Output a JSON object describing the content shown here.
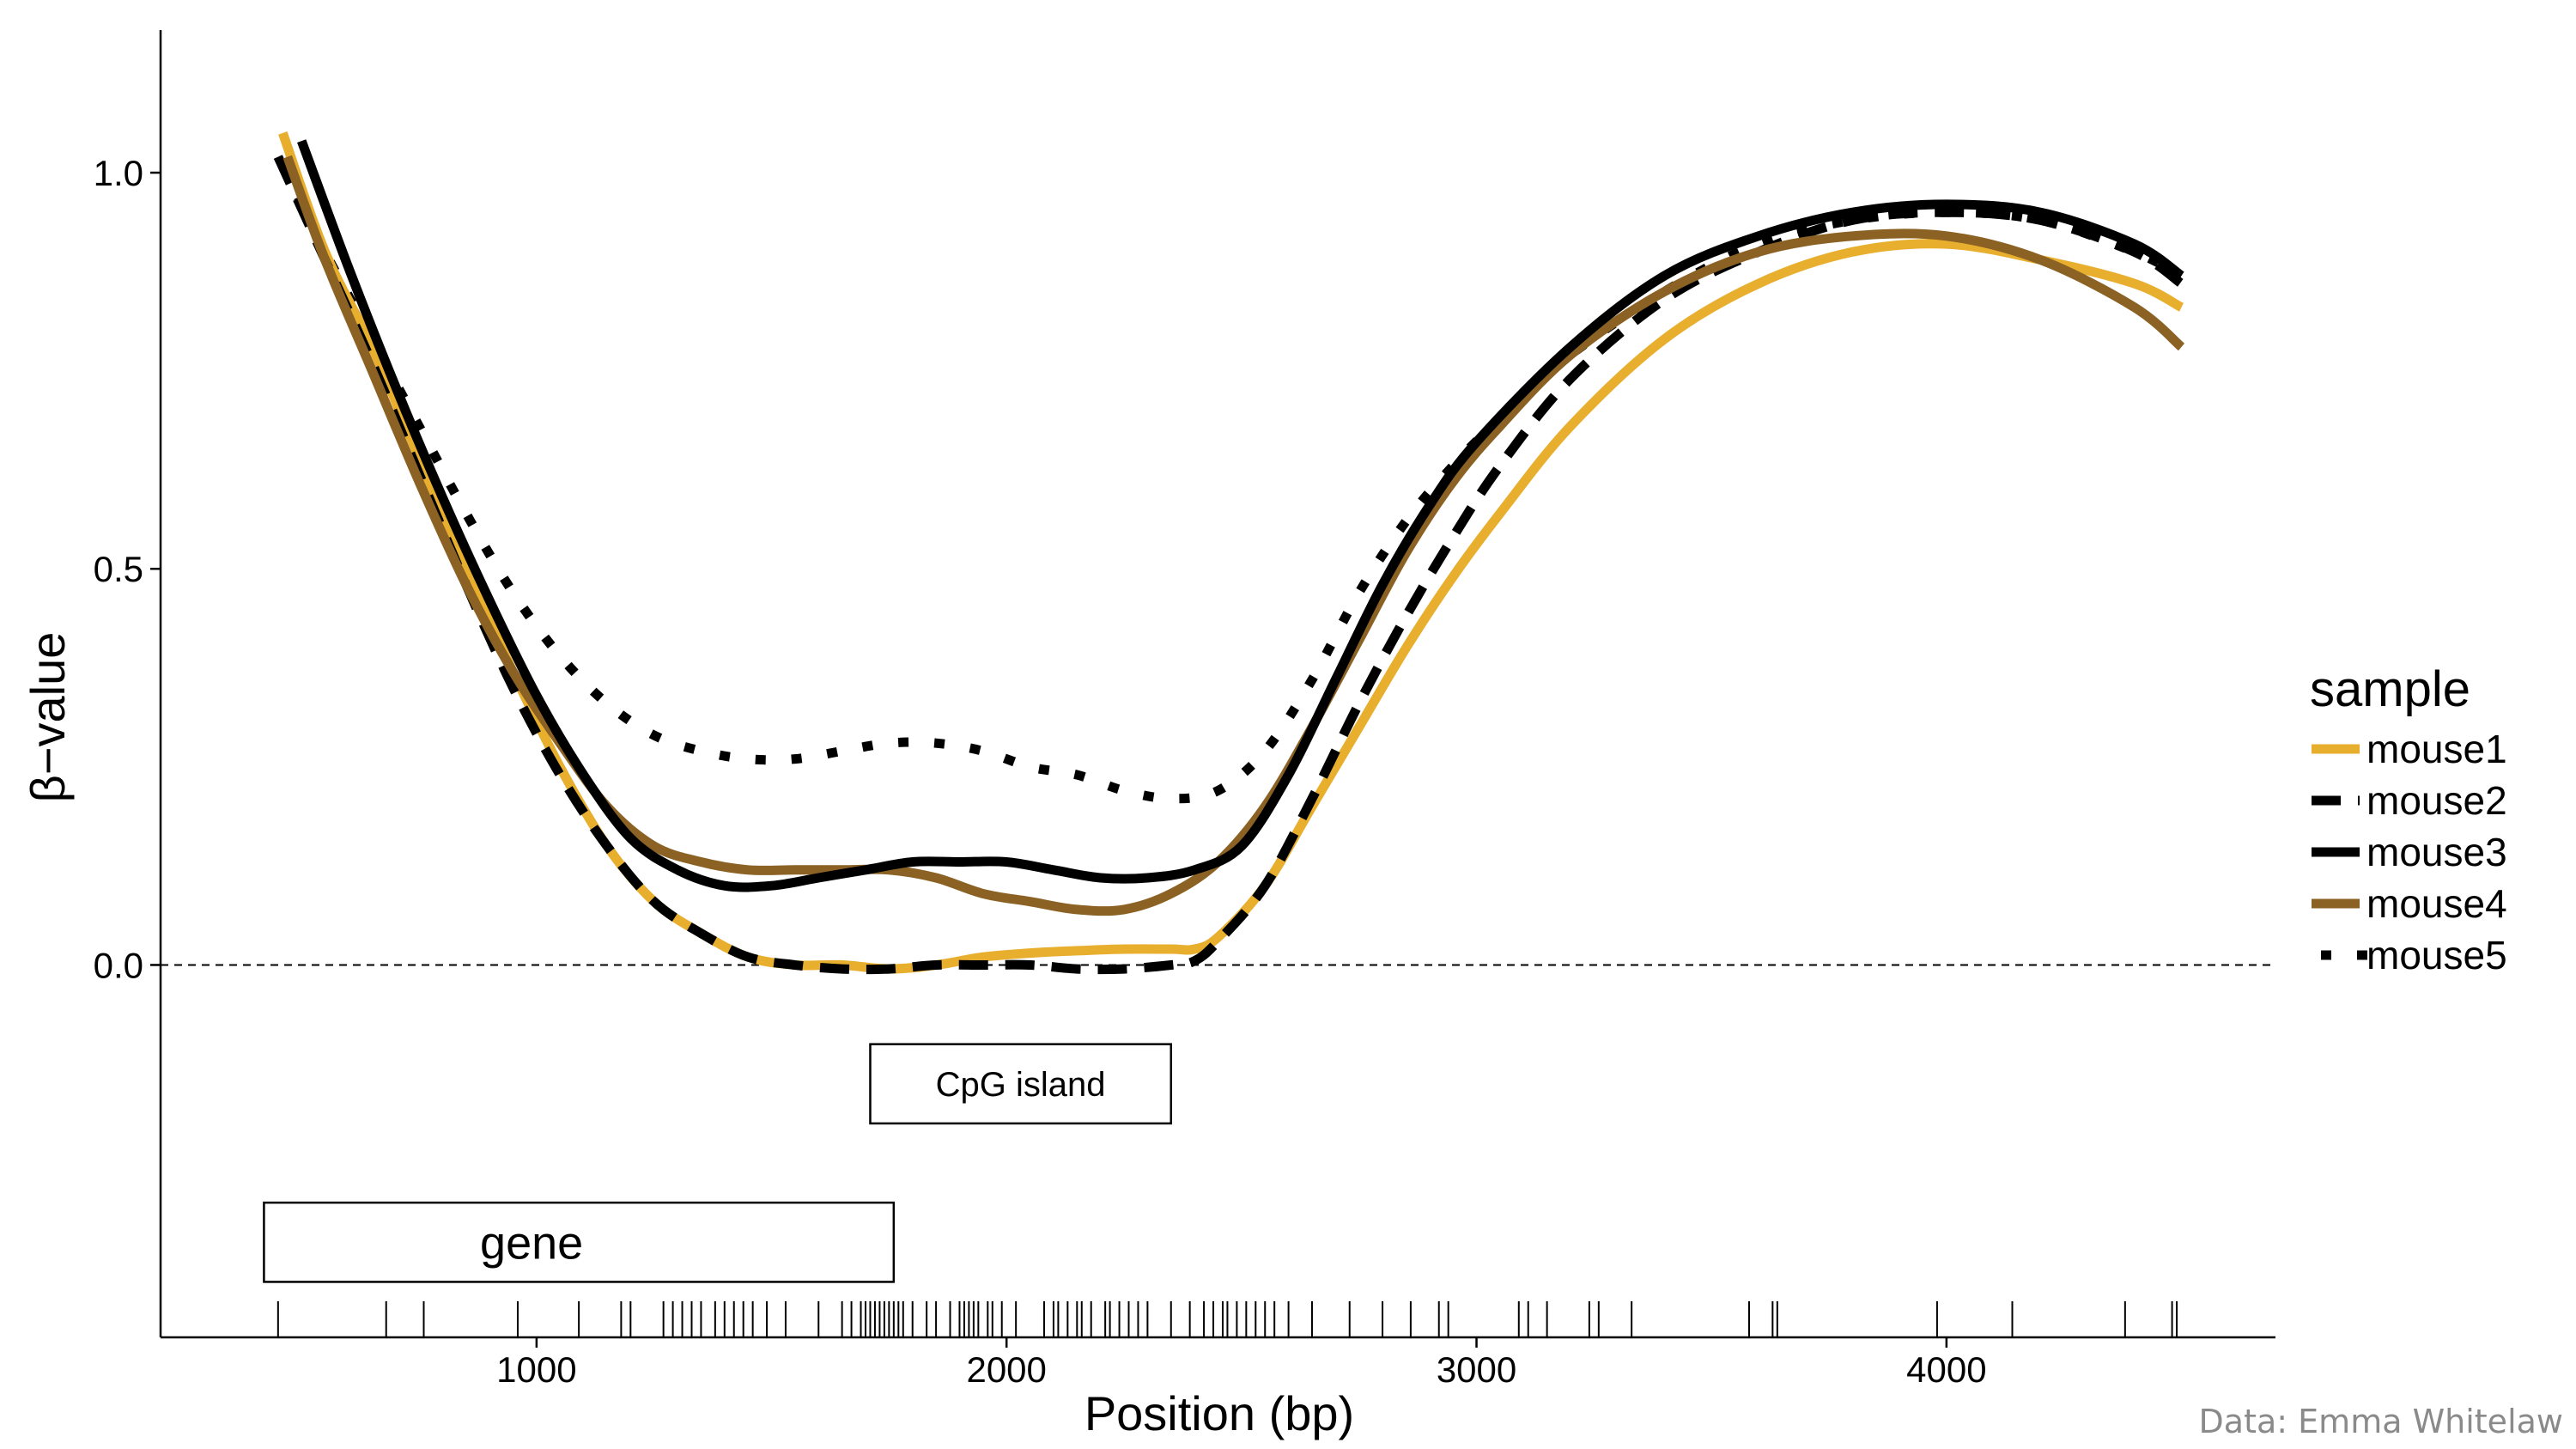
{
  "chart_data": {
    "type": "line",
    "xlabel": "Position (bp)",
    "ylabel": "β−value",
    "xlim": [
      200,
      4700
    ],
    "ylim": [
      -0.47,
      1.18
    ],
    "xticks": [
      1000,
      2000,
      3000,
      4000
    ],
    "xtick_labels": [
      "1000",
      "2000",
      "3000",
      "4000"
    ],
    "yticks": [
      0.0,
      0.5,
      1.0
    ],
    "ytick_labels": [
      "0.0",
      "0.5",
      "1.0"
    ],
    "grid": false,
    "reference_line": {
      "y": 0.0,
      "style": "dashed"
    },
    "legend": {
      "title": "sample",
      "placement": "right",
      "entries": [
        "mouse1",
        "mouse2",
        "mouse3",
        "mouse4",
        "mouse5"
      ]
    },
    "series": [
      {
        "name": "mouse1",
        "color": "#E8AE2E",
        "style": "solid",
        "x": [
          460,
          550,
          650,
          750,
          850,
          950,
          1050,
          1150,
          1250,
          1350,
          1450,
          1550,
          1650,
          1750,
          1850,
          1950,
          2050,
          2150,
          2250,
          2350,
          2400,
          2450,
          2550,
          2650,
          2750,
          2850,
          2950,
          3050,
          3200,
          3400,
          3600,
          3800,
          4000,
          4200,
          4400,
          4500
        ],
        "values": [
          1.05,
          0.9,
          0.78,
          0.64,
          0.5,
          0.37,
          0.25,
          0.15,
          0.08,
          0.04,
          0.01,
          0.0,
          0.0,
          -0.005,
          0.0,
          0.01,
          0.015,
          0.018,
          0.02,
          0.02,
          0.02,
          0.035,
          0.1,
          0.2,
          0.3,
          0.4,
          0.49,
          0.57,
          0.68,
          0.79,
          0.86,
          0.9,
          0.91,
          0.89,
          0.86,
          0.83
        ]
      },
      {
        "name": "mouse2",
        "color": "#000000",
        "style": "dashed",
        "x": [
          450,
          550,
          650,
          750,
          850,
          950,
          1050,
          1150,
          1250,
          1350,
          1450,
          1550,
          1650,
          1750,
          1850,
          1950,
          2050,
          2150,
          2250,
          2350,
          2400,
          2450,
          2550,
          2650,
          2750,
          2850,
          2950,
          3050,
          3200,
          3400,
          3600,
          3800,
          4000,
          4200,
          4400,
          4500
        ],
        "values": [
          1.02,
          0.89,
          0.76,
          0.62,
          0.48,
          0.35,
          0.24,
          0.15,
          0.08,
          0.04,
          0.01,
          0.0,
          -0.005,
          -0.005,
          0.0,
          0.0,
          0.0,
          -0.005,
          -0.005,
          0.0,
          0.005,
          0.03,
          0.1,
          0.21,
          0.33,
          0.44,
          0.54,
          0.63,
          0.74,
          0.84,
          0.9,
          0.94,
          0.95,
          0.94,
          0.9,
          0.86
        ]
      },
      {
        "name": "mouse3",
        "color": "#000000",
        "style": "solid",
        "x": [
          500,
          600,
          700,
          800,
          900,
          1000,
          1100,
          1200,
          1300,
          1400,
          1500,
          1600,
          1700,
          1800,
          1900,
          2000,
          2100,
          2200,
          2300,
          2400,
          2500,
          2600,
          2700,
          2800,
          2900,
          3000,
          3200,
          3400,
          3600,
          3800,
          4000,
          4200,
          4400,
          4500
        ],
        "values": [
          1.04,
          0.88,
          0.73,
          0.59,
          0.46,
          0.34,
          0.24,
          0.16,
          0.12,
          0.1,
          0.1,
          0.11,
          0.12,
          0.13,
          0.13,
          0.13,
          0.12,
          0.11,
          0.11,
          0.12,
          0.15,
          0.24,
          0.36,
          0.48,
          0.58,
          0.66,
          0.78,
          0.87,
          0.92,
          0.95,
          0.96,
          0.95,
          0.91,
          0.87
        ]
      },
      {
        "name": "mouse4",
        "color": "#8B6224",
        "style": "solid",
        "x": [
          470,
          550,
          650,
          750,
          850,
          950,
          1050,
          1150,
          1250,
          1350,
          1450,
          1550,
          1650,
          1750,
          1850,
          1950,
          2050,
          2150,
          2250,
          2350,
          2450,
          2550,
          2650,
          2750,
          2850,
          2950,
          3050,
          3200,
          3400,
          3600,
          3800,
          4000,
          4200,
          4400,
          4500
        ],
        "values": [
          1.02,
          0.89,
          0.75,
          0.61,
          0.48,
          0.37,
          0.28,
          0.2,
          0.15,
          0.13,
          0.12,
          0.12,
          0.12,
          0.12,
          0.11,
          0.09,
          0.08,
          0.07,
          0.07,
          0.09,
          0.13,
          0.2,
          0.3,
          0.41,
          0.52,
          0.61,
          0.68,
          0.77,
          0.85,
          0.9,
          0.92,
          0.92,
          0.89,
          0.83,
          0.78
        ]
      },
      {
        "name": "mouse5",
        "color": "#000000",
        "style": "dotted",
        "x": [
          460,
          550,
          650,
          750,
          850,
          950,
          1050,
          1150,
          1250,
          1350,
          1450,
          1550,
          1650,
          1750,
          1850,
          1950,
          2050,
          2150,
          2250,
          2350,
          2450,
          2550,
          2650,
          2750,
          2850,
          2950,
          3050,
          3200,
          3400,
          3600,
          3800,
          4000,
          4200,
          4400,
          4500
        ],
        "values": [
          1.01,
          0.9,
          0.79,
          0.68,
          0.57,
          0.47,
          0.39,
          0.33,
          0.29,
          0.27,
          0.26,
          0.26,
          0.27,
          0.28,
          0.28,
          0.27,
          0.25,
          0.24,
          0.22,
          0.21,
          0.22,
          0.27,
          0.36,
          0.47,
          0.56,
          0.63,
          0.69,
          0.77,
          0.85,
          0.91,
          0.94,
          0.95,
          0.94,
          0.9,
          0.87
        ]
      }
    ],
    "annotations": [
      {
        "label": "CpG island",
        "x_start": 1710,
        "x_end": 2350,
        "y_top": -0.1,
        "y_bottom": -0.2
      },
      {
        "label": "gene",
        "x_start": 420,
        "x_end": 1760,
        "y_top": -0.3,
        "y_bottom": -0.4
      }
    ],
    "rug": [
      450,
      680,
      760,
      960,
      1090,
      1180,
      1200,
      1270,
      1290,
      1310,
      1330,
      1350,
      1380,
      1400,
      1420,
      1440,
      1460,
      1490,
      1530,
      1600,
      1650,
      1670,
      1690,
      1700,
      1710,
      1720,
      1730,
      1740,
      1750,
      1760,
      1770,
      1780,
      1800,
      1830,
      1850,
      1880,
      1900,
      1910,
      1920,
      1930,
      1940,
      1960,
      1970,
      1990,
      2020,
      2080,
      2100,
      2110,
      2130,
      2150,
      2160,
      2180,
      2210,
      2220,
      2240,
      2260,
      2280,
      2300,
      2350,
      2390,
      2420,
      2440,
      2460,
      2470,
      2490,
      2510,
      2530,
      2550,
      2570,
      2600,
      2650,
      2730,
      2800,
      2860,
      2920,
      2940,
      3090,
      3110,
      3150,
      3240,
      3260,
      3330,
      3580,
      3630,
      3640,
      3980,
      4140,
      4380,
      4480,
      4490
    ]
  },
  "credit": "Data: Emma Whitelaw"
}
